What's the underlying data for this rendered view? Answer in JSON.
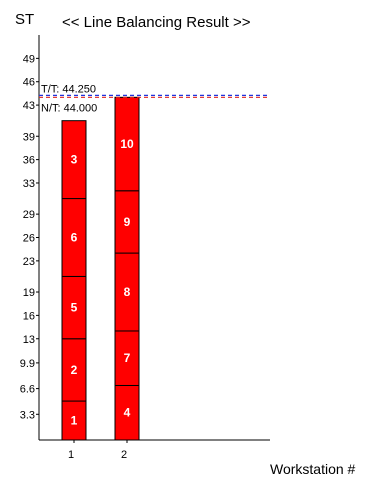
{
  "chart_data": {
    "type": "bar",
    "stacked": true,
    "title": "<< Line Balancing Result >>",
    "ylabel": "ST",
    "xlabel": "Workstation #",
    "ylim": [
      0,
      52
    ],
    "y_ticks": [
      {
        "value": 3.3,
        "label": "3.3"
      },
      {
        "value": 6.6,
        "label": "6.6"
      },
      {
        "value": 9.9,
        "label": "9.9"
      },
      {
        "value": 13,
        "label": "13"
      },
      {
        "value": 16,
        "label": "16"
      },
      {
        "value": 19,
        "label": "19"
      },
      {
        "value": 23,
        "label": "23"
      },
      {
        "value": 26,
        "label": "26"
      },
      {
        "value": 29,
        "label": "29"
      },
      {
        "value": 33,
        "label": "33"
      },
      {
        "value": 36,
        "label": "36"
      },
      {
        "value": 39,
        "label": "39"
      },
      {
        "value": 43,
        "label": "43"
      },
      {
        "value": 46,
        "label": "46"
      },
      {
        "value": 49,
        "label": "49"
      }
    ],
    "categories": [
      "1",
      "2"
    ],
    "stations": [
      {
        "label": "1",
        "tasks": [
          {
            "task": "1",
            "time": 5
          },
          {
            "task": "2",
            "time": 8
          },
          {
            "task": "5",
            "time": 8
          },
          {
            "task": "6",
            "time": 10
          },
          {
            "task": "3",
            "time": 10
          }
        ]
      },
      {
        "label": "2",
        "tasks": [
          {
            "task": "4",
            "time": 7
          },
          {
            "task": "7",
            "time": 7
          },
          {
            "task": "8",
            "time": 10
          },
          {
            "task": "9",
            "time": 8
          },
          {
            "task": "10",
            "time": 12
          }
        ]
      }
    ],
    "reference_lines": [
      {
        "label": "T/T: 44.250",
        "value": 44.25,
        "color": "#2233dd",
        "style": "dashed"
      },
      {
        "label": "N/T: 44.000",
        "value": 44.0,
        "color": "#dd2222",
        "style": "dashed"
      }
    ],
    "bar_color": "#ff0000",
    "bar_edge_color": "#000000",
    "grid": false,
    "legend": "none"
  }
}
